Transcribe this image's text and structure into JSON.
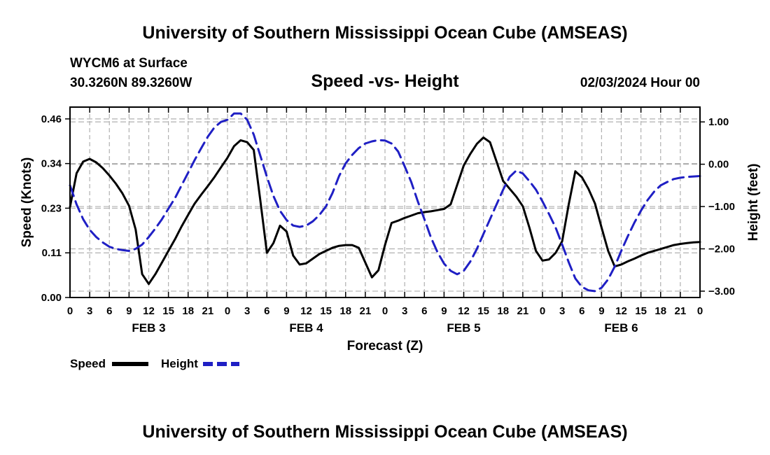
{
  "page": {
    "title_top": "University of Southern Mississippi Ocean Cube (AMSEAS)",
    "title_bottom": "University of Southern Mississippi Ocean Cube (AMSEAS)",
    "station": "WYCM6 at Surface",
    "coords": "30.3260N  89.3260W",
    "datetime": "02/03/2024 Hour 00"
  },
  "colors": {
    "speed": "#000000",
    "height": "#1f1fc4",
    "grid": "#b0b0b0"
  },
  "chart_data": {
    "type": "line",
    "title": "Speed -vs- Height",
    "xlabel": "Forecast (Z)",
    "ylabel_left": "Speed (Knots)",
    "ylabel_right": "Height (feet)",
    "x_range_hours": [
      0,
      96
    ],
    "x_tick_step_hours": 3,
    "x_tick_labels": [
      "0",
      "3",
      "6",
      "9",
      "12",
      "15",
      "18",
      "21",
      "0",
      "3",
      "6",
      "9",
      "12",
      "15",
      "18",
      "21",
      "0",
      "3",
      "6",
      "9",
      "12",
      "15",
      "18",
      "21",
      "0",
      "3",
      "6",
      "9",
      "12",
      "15",
      "18",
      "21",
      "0"
    ],
    "day_labels": [
      {
        "label": "FEB 3",
        "hour": 12
      },
      {
        "label": "FEB 4",
        "hour": 36
      },
      {
        "label": "FEB 5",
        "hour": 60
      },
      {
        "label": "FEB 6",
        "hour": 84
      }
    ],
    "ylim_left": [
      0,
      0.4904
    ],
    "yticks_left": [
      "0.00",
      "0.11",
      "0.23",
      "0.34",
      "0.46"
    ],
    "yticks_left_values": [
      0.0,
      0.115,
      0.23,
      0.345,
      0.46
    ],
    "ylim_right": [
      -3.15,
      1.35
    ],
    "yticks_right": [
      "−3.00",
      "−2.00",
      "−1.00",
      "0.00",
      "1.00"
    ],
    "yticks_right_values": [
      -3,
      -2,
      -1,
      0,
      1
    ],
    "grid": true,
    "legend_position": "bottom-left",
    "series": [
      {
        "name": "Speed",
        "axis": "left",
        "style": "solid",
        "x": [
          0,
          1,
          2,
          3,
          4,
          5,
          6,
          7,
          8,
          9,
          10,
          11,
          12,
          13,
          14,
          15,
          16,
          17,
          18,
          19,
          20,
          21,
          22,
          23,
          24,
          25,
          26,
          27,
          28,
          29,
          30,
          31,
          32,
          33,
          34,
          35,
          36,
          37,
          38,
          39,
          40,
          41,
          42,
          43,
          44,
          45,
          46,
          47,
          48,
          49,
          50,
          51,
          52,
          53,
          54,
          55,
          56,
          57,
          58,
          59,
          60,
          61,
          62,
          63,
          64,
          65,
          66,
          67,
          68,
          69,
          70,
          71,
          72,
          73,
          74,
          75,
          76,
          77,
          78,
          79,
          80,
          81,
          82,
          83,
          84,
          85,
          86,
          87,
          88,
          89,
          90,
          91,
          92,
          93,
          94,
          95,
          96
        ],
        "values": [
          0.233,
          0.32,
          0.35,
          0.357,
          0.348,
          0.333,
          0.314,
          0.293,
          0.268,
          0.236,
          0.175,
          0.06,
          0.035,
          0.06,
          0.09,
          0.12,
          0.15,
          0.183,
          0.213,
          0.242,
          0.265,
          0.287,
          0.31,
          0.335,
          0.36,
          0.39,
          0.405,
          0.4,
          0.38,
          0.25,
          0.115,
          0.14,
          0.185,
          0.17,
          0.108,
          0.085,
          0.088,
          0.1,
          0.112,
          0.12,
          0.128,
          0.133,
          0.135,
          0.135,
          0.128,
          0.09,
          0.052,
          0.07,
          0.135,
          0.192,
          0.198,
          0.205,
          0.211,
          0.217,
          0.22,
          0.222,
          0.225,
          0.228,
          0.24,
          0.29,
          0.34,
          0.37,
          0.396,
          0.412,
          0.4,
          0.35,
          0.3,
          0.28,
          0.26,
          0.235,
          0.18,
          0.12,
          0.095,
          0.098,
          0.115,
          0.145,
          0.24,
          0.325,
          0.31,
          0.28,
          0.242,
          0.18,
          0.12,
          0.08,
          0.085,
          0.093,
          0.1,
          0.108,
          0.115,
          0.12,
          0.125,
          0.13,
          0.135,
          0.138,
          0.14,
          0.142,
          0.143
        ]
      },
      {
        "name": "Height",
        "axis": "right",
        "style": "dashed",
        "x": [
          0,
          1,
          2,
          3,
          4,
          5,
          6,
          7,
          8,
          9,
          10,
          11,
          12,
          13,
          14,
          15,
          16,
          17,
          18,
          19,
          20,
          21,
          22,
          23,
          24,
          25,
          26,
          27,
          28,
          29,
          30,
          31,
          32,
          33,
          34,
          35,
          36,
          37,
          38,
          39,
          40,
          41,
          42,
          43,
          44,
          45,
          46,
          47,
          48,
          49,
          50,
          51,
          52,
          53,
          54,
          55,
          56,
          57,
          58,
          59,
          60,
          61,
          62,
          63,
          64,
          65,
          66,
          67,
          68,
          69,
          70,
          71,
          72,
          73,
          74,
          75,
          76,
          77,
          78,
          79,
          80,
          81,
          82,
          83,
          84,
          85,
          86,
          87,
          88,
          89,
          90,
          91,
          92,
          93,
          94,
          95,
          96
        ],
        "values": [
          -0.5,
          -0.95,
          -1.3,
          -1.55,
          -1.72,
          -1.85,
          -1.95,
          -2.0,
          -2.03,
          -2.05,
          -2.0,
          -1.9,
          -1.72,
          -1.52,
          -1.3,
          -1.05,
          -0.8,
          -0.5,
          -0.2,
          0.1,
          0.38,
          0.65,
          0.87,
          1.0,
          1.05,
          1.2,
          1.2,
          1.05,
          0.7,
          0.2,
          -0.3,
          -0.75,
          -1.1,
          -1.32,
          -1.45,
          -1.48,
          -1.45,
          -1.35,
          -1.2,
          -1.0,
          -0.68,
          -0.28,
          0.02,
          0.22,
          0.38,
          0.49,
          0.54,
          0.57,
          0.56,
          0.49,
          0.3,
          -0.05,
          -0.42,
          -0.88,
          -1.3,
          -1.73,
          -2.08,
          -2.35,
          -2.52,
          -2.6,
          -2.52,
          -2.3,
          -2.0,
          -1.65,
          -1.3,
          -0.95,
          -0.6,
          -0.3,
          -0.15,
          -0.22,
          -0.4,
          -0.6,
          -0.88,
          -1.18,
          -1.5,
          -1.9,
          -2.32,
          -2.7,
          -2.9,
          -2.98,
          -3.0,
          -2.92,
          -2.72,
          -2.42,
          -2.05,
          -1.7,
          -1.38,
          -1.1,
          -0.85,
          -0.65,
          -0.5,
          -0.42,
          -0.35,
          -0.32,
          -0.3,
          -0.29,
          -0.28
        ]
      }
    ]
  }
}
